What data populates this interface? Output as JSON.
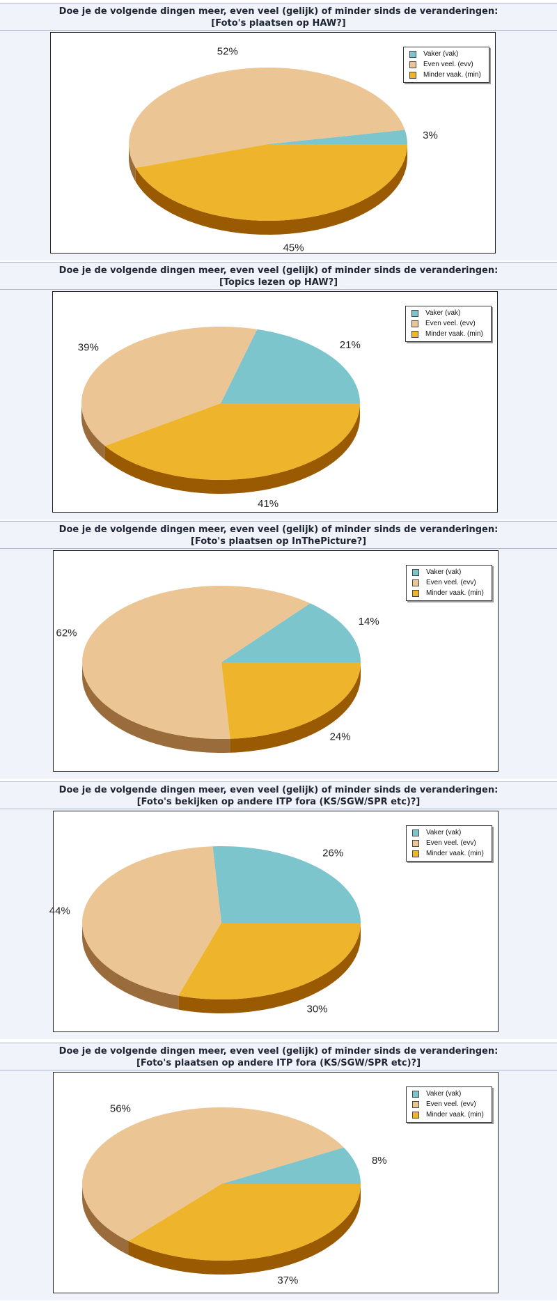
{
  "colors": {
    "vak": "#7cc5cc",
    "evv": "#ecc595",
    "min": "#eeb52c",
    "vak_side": "#4f8f95",
    "evv_side": "#9a6c3c",
    "min_side": "#9a5a02"
  },
  "legend": [
    {
      "key": "vak",
      "label": "Vaker (vak)"
    },
    {
      "key": "evv",
      "label": "Even veel.  (evv)"
    },
    {
      "key": "min",
      "label": "Minder vaak. (min)"
    }
  ],
  "chart_data": [
    {
      "type": "pie",
      "title_line1": "Doe je de volgende dingen meer, even veel (gelijk) of minder sinds de veranderingen:",
      "title_line2": "[Foto's plaatsen op HAW?]",
      "categories": [
        "Vaker (vak)",
        "Even veel.  (evv)",
        "Minder vaak. (min)"
      ],
      "values": [
        3,
        52,
        45
      ],
      "labels": [
        "3%",
        "52%",
        "45%"
      ]
    },
    {
      "type": "pie",
      "title_line1": "Doe je de volgende dingen meer, even veel (gelijk) of minder sinds de veranderingen:",
      "title_line2": "[Topics lezen op HAW?]",
      "categories": [
        "Vaker (vak)",
        "Even veel.  (evv)",
        "Minder vaak. (min)"
      ],
      "values": [
        21,
        39,
        41
      ],
      "labels": [
        "21%",
        "39%",
        "41%"
      ]
    },
    {
      "type": "pie",
      "title_line1": "Doe je de volgende dingen meer, even veel (gelijk) of minder sinds de veranderingen:",
      "title_line2": "[Foto's plaatsen op InThePicture?]",
      "categories": [
        "Vaker (vak)",
        "Even veel.  (evv)",
        "Minder vaak. (min)"
      ],
      "values": [
        14,
        62,
        24
      ],
      "labels": [
        "14%",
        "62%",
        "24%"
      ]
    },
    {
      "type": "pie",
      "title_line1": "Doe je de volgende dingen meer, even veel (gelijk) of minder sinds de veranderingen:",
      "title_line2": "[Foto's bekijken op andere ITP fora (KS/SGW/SPR etc)?]",
      "categories": [
        "Vaker (vak)",
        "Even veel.  (evv)",
        "Minder vaak. (min)"
      ],
      "values": [
        26,
        44,
        30
      ],
      "labels": [
        "26%",
        "44%",
        "30%"
      ]
    },
    {
      "type": "pie",
      "title_line1": "Doe je de volgende dingen meer, even veel (gelijk) of minder sinds de veranderingen:",
      "title_line2": "[Foto's plaatsen op andere ITP fora (KS/SGW/SPR etc)?]",
      "categories": [
        "Vaker (vak)",
        "Even veel.  (evv)",
        "Minder vaak. (min)"
      ],
      "values": [
        8,
        56,
        37
      ],
      "labels": [
        "8%",
        "56%",
        "37%"
      ]
    }
  ]
}
